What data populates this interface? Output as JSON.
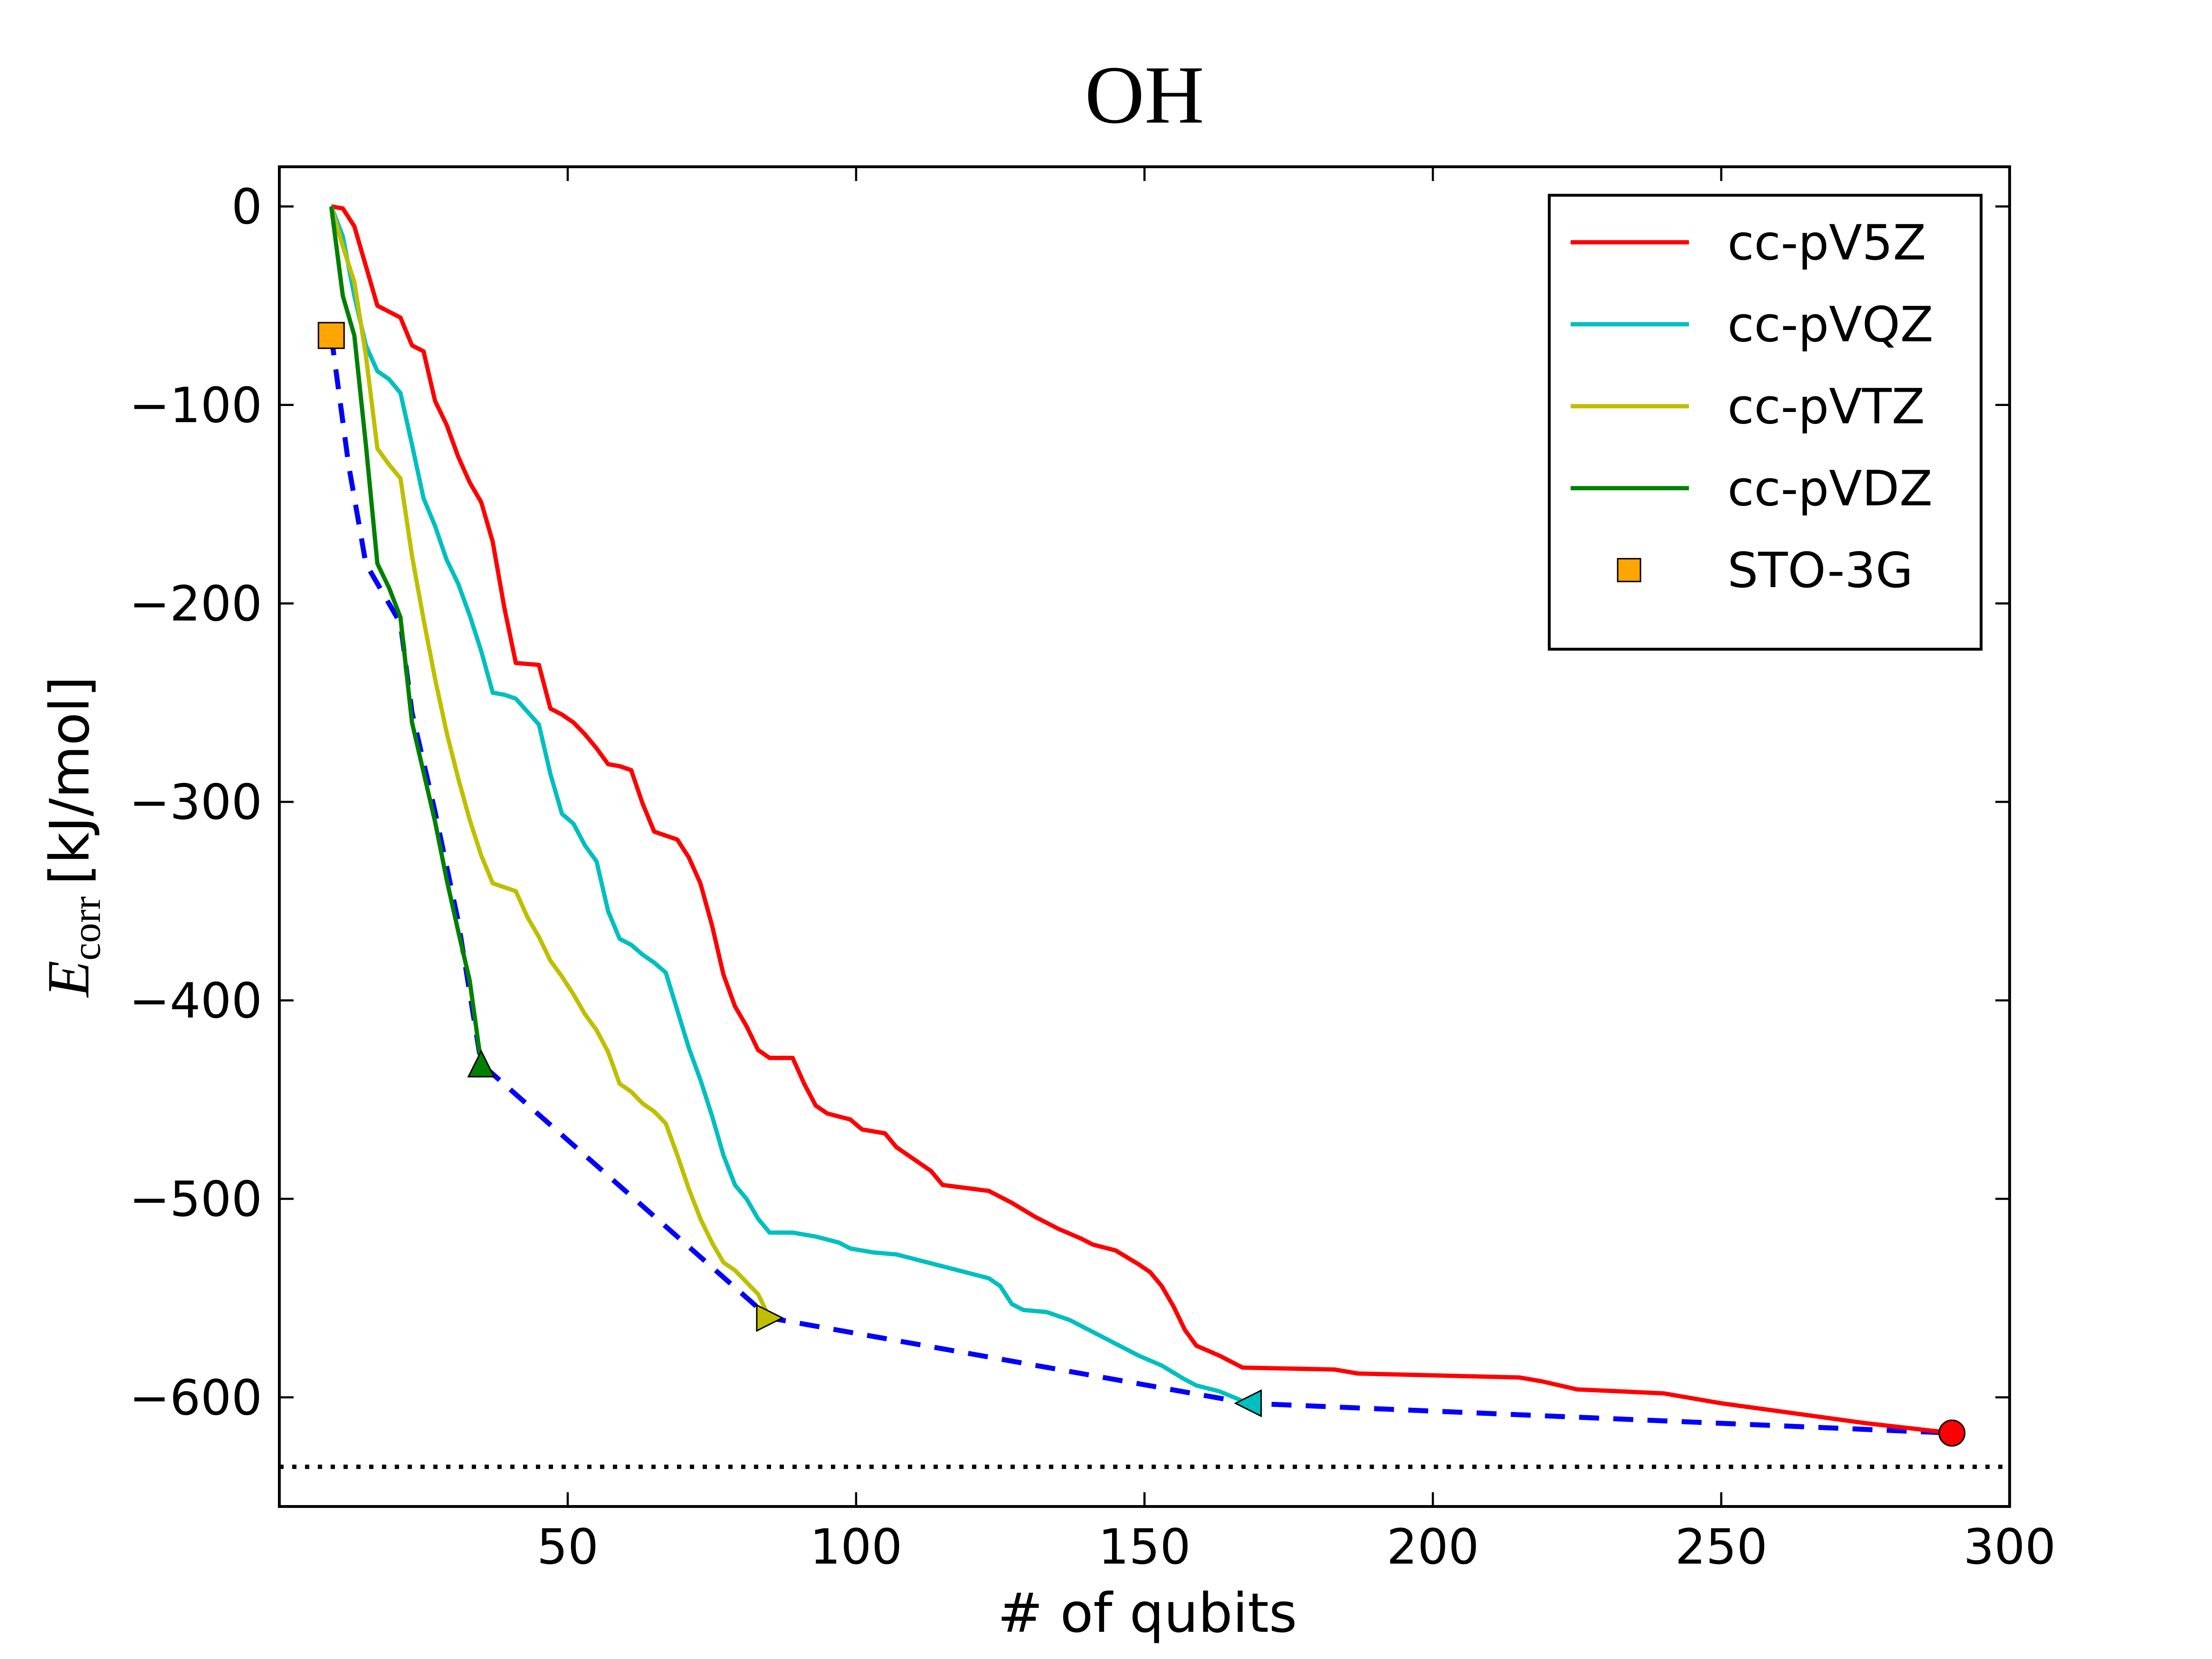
{
  "chart_data": {
    "type": "line",
    "title": "OH",
    "xlabel": "# of qubits",
    "ylabel": {
      "symbol": "E",
      "subscript": "corr",
      "unit": "[kJ/mol]"
    },
    "xlim": [
      0,
      300
    ],
    "ylim": [
      -655,
      20
    ],
    "xticks": [
      50,
      100,
      150,
      200,
      250,
      300
    ],
    "yticks": [
      0,
      {
        "value": -100,
        "label": "−100"
      },
      {
        "value": -200,
        "label": "−200"
      },
      {
        "value": -300,
        "label": "−300"
      },
      {
        "value": -400,
        "label": "−400"
      },
      {
        "value": -500,
        "label": "−500"
      },
      {
        "value": -600,
        "label": "−600"
      }
    ],
    "reference_line": -635,
    "legend": "upper right",
    "series": [
      {
        "name": "cc-pV5Z",
        "color": "#ff0000",
        "marker": "o",
        "x": [
          9,
          11,
          13,
          15,
          17,
          19,
          21,
          23,
          25,
          27,
          29,
          31,
          33,
          35,
          37,
          39,
          41,
          45,
          47,
          49,
          51,
          53,
          55,
          57,
          59,
          61,
          63,
          65,
          69,
          71,
          73,
          75,
          77,
          79,
          81,
          83,
          85,
          89,
          91,
          93,
          95,
          99,
          101,
          105,
          107,
          109,
          113,
          115,
          123,
          127,
          131,
          135,
          139,
          141,
          145,
          149,
          151,
          153,
          155,
          157,
          159,
          163,
          167,
          183,
          187,
          215,
          219,
          225,
          240,
          250,
          260,
          275,
          290
        ],
        "values": [
          0,
          -1,
          -10,
          -30,
          -50,
          -53,
          -56,
          -70,
          -73,
          -98,
          -110,
          -126,
          -139,
          -149,
          -169,
          -202,
          -230,
          -231,
          -253,
          -256,
          -260,
          -266,
          -273,
          -281,
          -282,
          -284,
          -301,
          -315,
          -319,
          -328,
          -341,
          -362,
          -387,
          -403,
          -413,
          -425,
          -429,
          -429,
          -442,
          -453,
          -457,
          -460,
          -465,
          -467,
          -474,
          -478,
          -486,
          -493,
          -496,
          -502,
          -509,
          -515,
          -520,
          -523,
          -526,
          -533,
          -537,
          -544,
          -554,
          -566,
          -574,
          -579,
          -585,
          -586,
          -588,
          -590,
          -592,
          -596,
          -598,
          -603,
          -607,
          -613,
          -618
        ]
      },
      {
        "name": "cc-pVQZ",
        "color": "#00bfbf",
        "marker": "<",
        "x": [
          9,
          11,
          13,
          15,
          17,
          19,
          21,
          23,
          25,
          27,
          29,
          31,
          33,
          35,
          37,
          39,
          41,
          45,
          47,
          49,
          51,
          53,
          55,
          57,
          59,
          61,
          63,
          65,
          67,
          69,
          71,
          73,
          75,
          77,
          79,
          81,
          83,
          85,
          89,
          93,
          97,
          99,
          103,
          107,
          111,
          115,
          123,
          125,
          127,
          129,
          133,
          137,
          141,
          145,
          149,
          153,
          157,
          159,
          163,
          168
        ],
        "values": [
          0,
          -15,
          -45,
          -70,
          -83,
          -87,
          -94,
          -120,
          -147,
          -161,
          -178,
          -190,
          -206,
          -224,
          -245,
          -246,
          -248,
          -261,
          -286,
          -306,
          -311,
          -322,
          -330,
          -355,
          -369,
          -372,
          -377,
          -381,
          -386,
          -405,
          -424,
          -440,
          -458,
          -478,
          -493,
          -500,
          -510,
          -517,
          -517,
          -519,
          -522,
          -525,
          -527,
          -528,
          -531,
          -534,
          -540,
          -544,
          -553,
          -556,
          -557,
          -561,
          -567,
          -573,
          -579,
          -584,
          -591,
          -594,
          -597,
          -603
        ]
      },
      {
        "name": "cc-pVTZ",
        "color": "#bfbf00",
        "marker": ">",
        "x": [
          9,
          11,
          13,
          15,
          17,
          19,
          21,
          23,
          25,
          27,
          29,
          31,
          33,
          35,
          37,
          41,
          43,
          45,
          47,
          49,
          51,
          53,
          55,
          57,
          59,
          61,
          63,
          65,
          67,
          69,
          71,
          73,
          75,
          77,
          79,
          81,
          83,
          85
        ],
        "values": [
          0,
          -20,
          -38,
          -75,
          -122,
          -130,
          -137,
          -176,
          -208,
          -238,
          -265,
          -288,
          -309,
          -327,
          -341,
          -345,
          -358,
          -368,
          -380,
          -388,
          -397,
          -407,
          -415,
          -426,
          -442,
          -446,
          -452,
          -456,
          -462,
          -478,
          -495,
          -510,
          -522,
          -532,
          -536,
          -542,
          -548,
          -560
        ]
      },
      {
        "name": "cc-pVDZ",
        "color": "#008000",
        "marker": "^",
        "x": [
          9,
          11,
          13,
          15,
          17,
          19,
          21,
          23,
          25,
          27,
          29,
          31,
          33,
          35
        ],
        "values": [
          0,
          -45,
          -65,
          -120,
          -180,
          -192,
          -207,
          -260,
          -285,
          -310,
          -339,
          -365,
          -390,
          -432
        ]
      },
      {
        "name": "STO-3G",
        "color": "#ffa500",
        "marker": "s",
        "line": false,
        "x": [
          9
        ],
        "values": [
          -65
        ]
      },
      {
        "color": "#0000ff",
        "dashed": true,
        "x": [
          9,
          12,
          15,
          19,
          21,
          23,
          27,
          31,
          35,
          85,
          168,
          290
        ],
        "values": [
          -65,
          -130,
          -180,
          -200,
          -210,
          -255,
          -305,
          -360,
          -432,
          -560,
          -603,
          -618
        ]
      }
    ]
  }
}
